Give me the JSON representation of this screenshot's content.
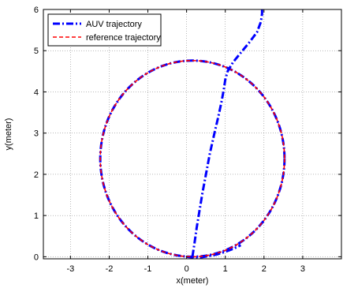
{
  "chart_data": {
    "type": "line",
    "title": "",
    "xlabel": "x(meter)",
    "ylabel": "y(meter)",
    "xlim": [
      -3.7,
      4.0
    ],
    "ylim": [
      -0.05,
      6.0
    ],
    "grid": true,
    "legend_placement": "top-left",
    "x_ticks": [
      -3,
      -2,
      -1,
      0,
      1,
      2,
      3
    ],
    "x_tick_labels": [
      "-3",
      "-2",
      "-1",
      "0",
      "1",
      "2",
      "3"
    ],
    "y_ticks": [
      0,
      1,
      2,
      3,
      4,
      5,
      6
    ],
    "y_tick_labels": [
      "0",
      "1",
      "2",
      "3",
      "4",
      "5",
      "6"
    ],
    "series": [
      {
        "name": "AUV trajectory",
        "color": "#0000ff",
        "style": "dash-dot",
        "x": [
          0.15,
          0.2,
          0.26,
          0.33,
          0.41,
          0.5,
          0.6,
          0.72,
          0.82,
          0.9,
          0.96,
          1.0,
          1.06,
          1.2,
          1.4,
          1.62,
          1.82,
          1.92,
          1.95,
          1.95
        ],
        "y": [
          0.0,
          0.3,
          0.7,
          1.1,
          1.55,
          2.0,
          2.5,
          3.0,
          3.4,
          3.75,
          4.05,
          4.3,
          4.5,
          4.72,
          4.95,
          5.2,
          5.45,
          5.7,
          5.9,
          6.0
        ]
      },
      {
        "name": "AUV trajectory",
        "color": "#0000ff",
        "style": "dash-dot",
        "x": [
          0.0,
          0.2,
          0.4,
          0.6,
          0.8,
          1.0,
          1.2,
          1.4
        ],
        "y": [
          0.0,
          -0.02,
          -0.01,
          0.02,
          0.06,
          0.12,
          0.19,
          0.28
        ]
      },
      {
        "name": "reference trajectory",
        "color": "#ff0000",
        "style": "dashed",
        "center": [
          0.15,
          2.38
        ],
        "radius": 2.38,
        "x": [
          0.15,
          0.67,
          1.17,
          1.62,
          1.99,
          2.27,
          2.45,
          2.53,
          2.45,
          2.27,
          1.99,
          1.62,
          1.17,
          0.67,
          0.15,
          -0.37,
          -0.87,
          -1.32,
          -1.69,
          -1.97,
          -2.15,
          -2.23,
          -2.15,
          -1.97,
          -1.69,
          -1.32,
          -0.87,
          -0.37,
          0.15
        ],
        "y": [
          0.0,
          0.06,
          0.22,
          0.47,
          0.8,
          1.2,
          1.64,
          2.38,
          3.12,
          3.56,
          3.96,
          4.29,
          4.54,
          4.7,
          4.76,
          4.7,
          4.54,
          4.29,
          3.96,
          3.56,
          3.12,
          2.38,
          1.64,
          1.2,
          0.8,
          0.47,
          0.22,
          0.06,
          0.0
        ]
      }
    ],
    "legend": [
      {
        "label": "AUV trajectory",
        "color": "#0000ff",
        "style": "dash-dot"
      },
      {
        "label": "reference trajectory",
        "color": "#ff0000",
        "style": "dashed"
      }
    ]
  }
}
